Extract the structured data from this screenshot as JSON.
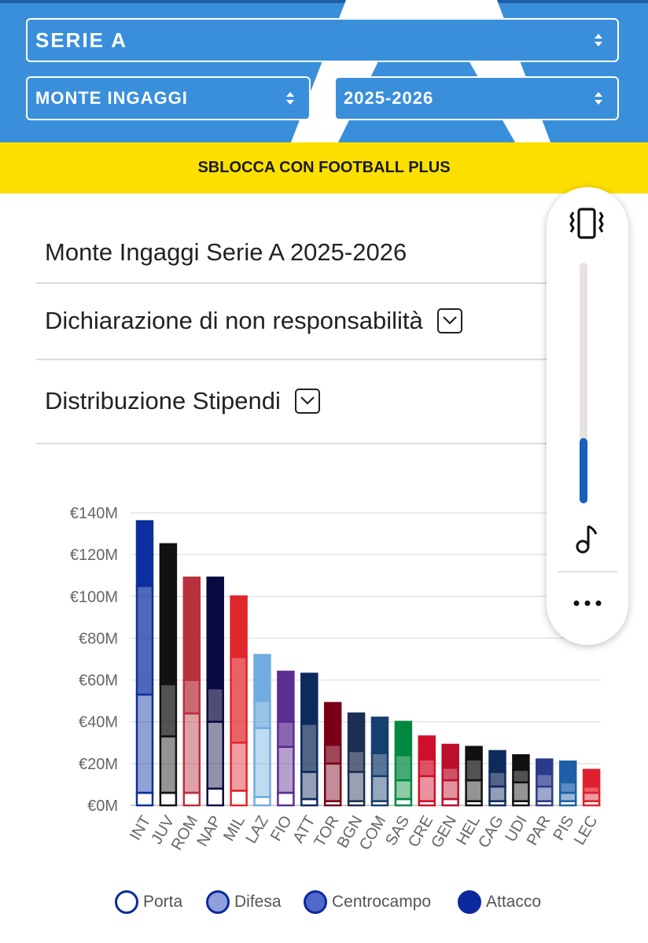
{
  "filters": {
    "league": "SERIE A",
    "metric": "MONTE INGAGGI",
    "season": "2025-2026"
  },
  "promo": {
    "label": "SBLOCCA CON FOOTBALL PLUS"
  },
  "content": {
    "title": "Monte Ingaggi Serie A 2025-2026",
    "disclaimer_label": "Dichiarazione di non responsabilità",
    "distribution_label": "Distribuzione Stipendi"
  },
  "volume_panel": {
    "level": 0.27,
    "icons": [
      "vibrate-icon",
      "music-note-icon",
      "more-options-icon"
    ]
  },
  "legend": [
    {
      "label": "Porta",
      "style": "outline"
    },
    {
      "label": "Difesa",
      "style": "light"
    },
    {
      "label": "Centrocampo",
      "style": "medium"
    },
    {
      "label": "Attacco",
      "style": "solid"
    }
  ],
  "chart_data": {
    "type": "bar",
    "stacked": true,
    "ylim": [
      0,
      140
    ],
    "yticks": [
      "€0M",
      "€20M",
      "€40M",
      "€60M",
      "€80M",
      "€100M",
      "€120M",
      "€140M"
    ],
    "grid": true,
    "legend_position": "bottom",
    "categories": [
      "INT",
      "JUV",
      "ROM",
      "NAP",
      "MIL",
      "LAZ",
      "FIO",
      "ATT",
      "TOR",
      "BGN",
      "COM",
      "SAS",
      "CRE",
      "GEN",
      "HEL",
      "CAG",
      "UDI",
      "PAR",
      "PIS",
      "LEC"
    ],
    "colors": [
      "#0b2f9f",
      "#111111",
      "#b8313c",
      "#0a0a40",
      "#e0262a",
      "#72acdf",
      "#5c2d91",
      "#0f2a5c",
      "#7a0018",
      "#1c2f52",
      "#173f6e",
      "#00893e",
      "#d0102a",
      "#bb0f2b",
      "#111111",
      "#0f2a5c",
      "#111111",
      "#2b3a8c",
      "#1f5fa8",
      "#e0202e"
    ],
    "series": [
      {
        "name": "Porta",
        "values": [
          6,
          6,
          6,
          8,
          7,
          4,
          6,
          3,
          2,
          2,
          2,
          3,
          2,
          3,
          2,
          2,
          2,
          2,
          2,
          2
        ]
      },
      {
        "name": "Difesa",
        "values": [
          47,
          27,
          38,
          32,
          23,
          33,
          22,
          13,
          18,
          14,
          12,
          9,
          12,
          9,
          10,
          7,
          9,
          7,
          4,
          4
        ]
      },
      {
        "name": "Centrocampo",
        "values": [
          52,
          25,
          16,
          16,
          41,
          13,
          12,
          23,
          9,
          10,
          11,
          12,
          8,
          6,
          10,
          7,
          6,
          6,
          5,
          3
        ]
      },
      {
        "name": "Attacco",
        "values": [
          31,
          67,
          49,
          53,
          29,
          22,
          24,
          24,
          20,
          18,
          17,
          16,
          11,
          11,
          6,
          10,
          7,
          7,
          10,
          8
        ]
      }
    ]
  }
}
